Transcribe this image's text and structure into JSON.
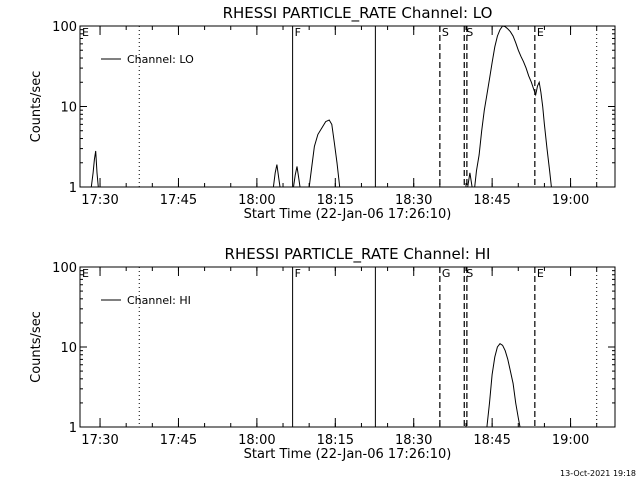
{
  "footer_timestamp": "13-Oct-2021 19:18",
  "chart_data": [
    {
      "type": "line",
      "title": "RHESSI PARTICLE_RATE Channel: LO",
      "xlabel": "Start Time (22-Jan-06 17:26:10)",
      "ylabel": "Counts/sec",
      "yscale": "log",
      "ylim": [
        1,
        100
      ],
      "xlim": [
        "17:26:10",
        "19:08:30"
      ],
      "yticks": [
        "1",
        "10",
        "100"
      ],
      "xticks": [
        "17:30",
        "17:45",
        "18:00",
        "18:15",
        "18:30",
        "18:45",
        "19:00"
      ],
      "legend": {
        "label": "Channel: LO",
        "position": "top-left"
      },
      "markers": [
        {
          "label": "E",
          "time": "17:26:10",
          "style": "none"
        },
        {
          "label": "",
          "time": "17:37:30",
          "style": "dotted"
        },
        {
          "label": "F",
          "time": "18:06:50",
          "style": "solid"
        },
        {
          "label": "",
          "time": "18:22:40",
          "style": "solid"
        },
        {
          "label": "S",
          "time": "18:35:00",
          "style": "dashed"
        },
        {
          "label": "S",
          "time": "18:39:40",
          "style": "dashed"
        },
        {
          "label": "",
          "time": "18:40:10",
          "style": "dashed"
        },
        {
          "label": "E",
          "time": "18:53:10",
          "style": "dashed"
        },
        {
          "label": "",
          "time": "19:05:00",
          "style": "dotted"
        }
      ],
      "series": [
        {
          "segments": [
            [
              [
                "17:28:20",
                1
              ],
              [
                "17:28:40",
                1.5
              ],
              [
                "17:28:55",
                2.2
              ],
              [
                "17:29:10",
                2.8
              ],
              [
                "17:29:25",
                1.5
              ],
              [
                "17:29:40",
                1
              ]
            ],
            [
              [
                "18:03:10",
                1
              ],
              [
                "18:03:30",
                1.5
              ],
              [
                "18:03:50",
                1.9
              ],
              [
                "18:04:10",
                1.3
              ],
              [
                "18:04:25",
                1
              ]
            ],
            [
              [
                "18:07:00",
                1
              ],
              [
                "18:07:20",
                1.4
              ],
              [
                "18:07:40",
                1.8
              ],
              [
                "18:08:00",
                1.3
              ],
              [
                "18:08:15",
                1
              ]
            ],
            [
              [
                "18:10:00",
                1
              ],
              [
                "18:10:30",
                1.8
              ],
              [
                "18:11:00",
                3.2
              ],
              [
                "18:11:40",
                4.5
              ],
              [
                "18:12:30",
                5.5
              ],
              [
                "18:13:10",
                6.5
              ],
              [
                "18:13:50",
                6.8
              ],
              [
                "18:14:20",
                6
              ],
              [
                "18:14:50",
                3.5
              ],
              [
                "18:15:20",
                2
              ],
              [
                "18:15:50",
                1
              ]
            ],
            [
              [
                "18:40:20",
                1
              ],
              [
                "18:40:45",
                1.5
              ],
              [
                "18:41:10",
                1
              ]
            ],
            [
              [
                "18:41:40",
                1
              ],
              [
                "18:42:00",
                1.6
              ],
              [
                "18:42:30",
                2.5
              ],
              [
                "18:43:00",
                5
              ],
              [
                "18:43:30",
                9
              ],
              [
                "18:44:00",
                14
              ],
              [
                "18:44:30",
                22
              ],
              [
                "18:45:00",
                35
              ],
              [
                "18:45:30",
                55
              ],
              [
                "18:46:00",
                75
              ],
              [
                "18:46:30",
                90
              ],
              [
                "18:47:00",
                100
              ],
              [
                "18:47:30",
                98
              ],
              [
                "18:48:00",
                92
              ],
              [
                "18:48:30",
                85
              ],
              [
                "18:49:00",
                75
              ],
              [
                "18:49:30",
                62
              ],
              [
                "18:50:00",
                50
              ],
              [
                "18:50:30",
                42
              ],
              [
                "18:51:00",
                36
              ],
              [
                "18:51:30",
                30
              ],
              [
                "18:52:00",
                24
              ],
              [
                "18:52:30",
                20
              ],
              [
                "18:53:00",
                16
              ],
              [
                "18:53:20",
                14
              ],
              [
                "18:53:40",
                18
              ],
              [
                "18:54:00",
                20
              ],
              [
                "18:54:20",
                15
              ],
              [
                "18:54:40",
                10
              ],
              [
                "18:55:00",
                6
              ],
              [
                "18:55:30",
                3
              ],
              [
                "18:56:00",
                1.6
              ],
              [
                "18:56:20",
                1
              ]
            ]
          ]
        }
      ]
    },
    {
      "type": "line",
      "title": "RHESSI PARTICLE_RATE Channel: HI",
      "xlabel": "Start Time (22-Jan-06 17:26:10)",
      "ylabel": "Counts/sec",
      "yscale": "log",
      "ylim": [
        1,
        100
      ],
      "xlim": [
        "17:26:10",
        "19:08:30"
      ],
      "yticks": [
        "1",
        "10",
        "100"
      ],
      "xticks": [
        "17:30",
        "17:45",
        "18:00",
        "18:15",
        "18:30",
        "18:45",
        "19:00"
      ],
      "legend": {
        "label": "Channel: HI",
        "position": "top-left"
      },
      "markers": [
        {
          "label": "E",
          "time": "17:26:10",
          "style": "none"
        },
        {
          "label": "",
          "time": "17:37:30",
          "style": "dotted"
        },
        {
          "label": "F",
          "time": "18:06:50",
          "style": "solid"
        },
        {
          "label": "",
          "time": "18:22:40",
          "style": "solid"
        },
        {
          "label": "G",
          "time": "18:35:00",
          "style": "dashed"
        },
        {
          "label": "S",
          "time": "18:39:40",
          "style": "dashed"
        },
        {
          "label": "",
          "time": "18:40:10",
          "style": "dashed"
        },
        {
          "label": "E",
          "time": "18:53:10",
          "style": "dashed"
        },
        {
          "label": "",
          "time": "19:05:00",
          "style": "dotted"
        }
      ],
      "series": [
        {
          "segments": [
            [
              [
                "18:44:00",
                1
              ],
              [
                "18:44:30",
                2
              ],
              [
                "18:45:00",
                4.5
              ],
              [
                "18:45:30",
                7.5
              ],
              [
                "18:46:00",
                10
              ],
              [
                "18:46:30",
                11
              ],
              [
                "18:47:00",
                10.5
              ],
              [
                "18:47:30",
                9
              ],
              [
                "18:48:00",
                7
              ],
              [
                "18:48:30",
                5
              ],
              [
                "18:49:00",
                3.5
              ],
              [
                "18:49:30",
                2
              ],
              [
                "18:50:00",
                1.3
              ],
              [
                "18:50:20",
                1
              ]
            ]
          ]
        }
      ]
    }
  ]
}
